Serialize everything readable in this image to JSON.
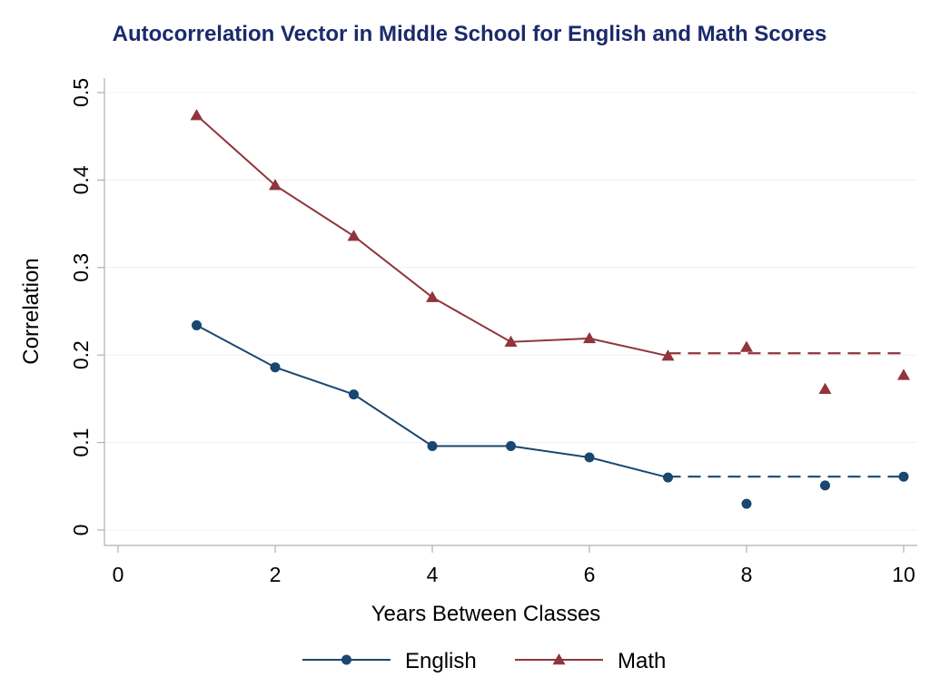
{
  "colors": {
    "english": "#1a476f",
    "math": "#90353b",
    "title": "#1a2a6c",
    "grid": "#eef0f4",
    "axis": "#b0b0b0"
  },
  "chart_data": {
    "type": "line",
    "title": "Autocorrelation Vector in Middle School for English and Math Scores",
    "xlabel": "Years Between Classes",
    "ylabel": "Correlation",
    "xlim": [
      0,
      10
    ],
    "ylim": [
      0,
      0.5
    ],
    "xticks": [
      0,
      2,
      4,
      6,
      8,
      10
    ],
    "yticks": [
      0,
      0.1,
      0.2,
      0.3,
      0.4,
      0.5
    ],
    "ytick_labels": [
      "0",
      "0.1",
      "0.2",
      "0.3",
      "0.4",
      "0.5"
    ],
    "grid": true,
    "legend_position": "bottom",
    "series": [
      {
        "name": "English",
        "color_key": "english",
        "marker": "circle",
        "line_x": [
          1,
          2,
          3,
          4,
          5,
          6,
          7
        ],
        "line_y": [
          0.234,
          0.186,
          0.155,
          0.096,
          0.096,
          0.083,
          0.06
        ],
        "points_only_x": [
          8,
          9,
          10
        ],
        "points_only_y": [
          0.03,
          0.051,
          0.061
        ],
        "dashed_level": 0.061,
        "dashed_from": 7,
        "dashed_to": 10
      },
      {
        "name": "Math",
        "color_key": "math",
        "marker": "triangle",
        "line_x": [
          1,
          2,
          3,
          4,
          5,
          6,
          7
        ],
        "line_y": [
          0.474,
          0.394,
          0.336,
          0.266,
          0.215,
          0.219,
          0.199
        ],
        "points_only_x": [
          8,
          9,
          10
        ],
        "points_only_y": [
          0.209,
          0.161,
          0.177
        ],
        "dashed_level": 0.202,
        "dashed_from": 7,
        "dashed_to": 10
      }
    ]
  }
}
